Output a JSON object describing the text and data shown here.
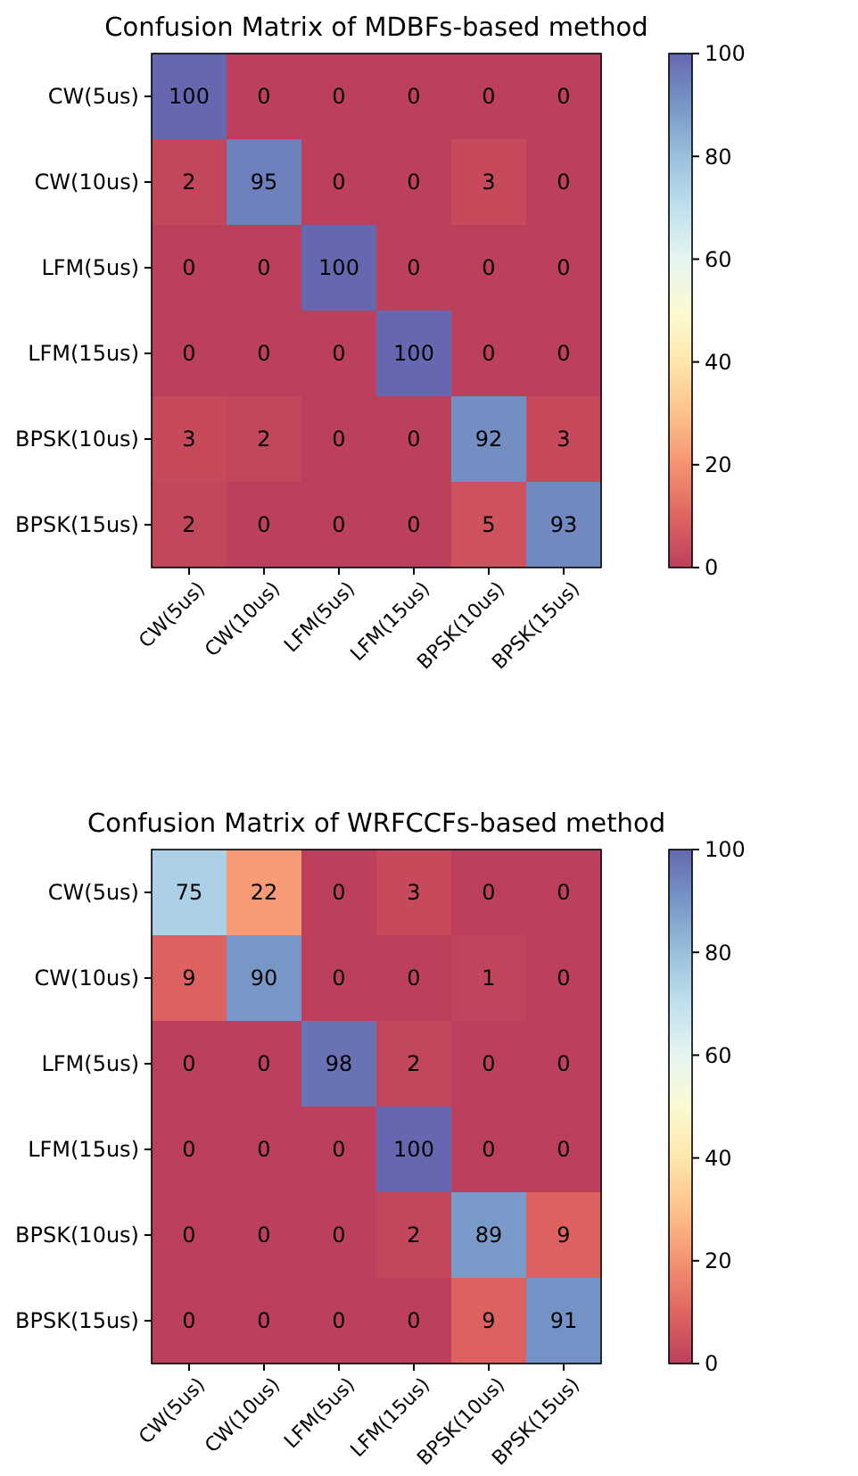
{
  "chart_data": [
    {
      "type": "heatmap",
      "title": "Confusion Matrix of MDBFs-based method",
      "categories": [
        "CW(5us)",
        "CW(10us)",
        "LFM(5us)",
        "LFM(15us)",
        "BPSK(10us)",
        "BPSK(15us)"
      ],
      "y_categories": [
        "CW(5us)",
        "CW(10us)",
        "LFM(5us)",
        "LFM(15us)",
        "BPSK(10us)",
        "BPSK(15us)"
      ],
      "cells": [
        [
          100,
          0,
          0,
          0,
          0,
          0
        ],
        [
          2,
          95,
          0,
          0,
          3,
          0
        ],
        [
          0,
          0,
          100,
          0,
          0,
          0
        ],
        [
          0,
          0,
          0,
          100,
          0,
          0
        ],
        [
          3,
          2,
          0,
          0,
          92,
          3
        ],
        [
          2,
          0,
          0,
          0,
          5,
          93
        ]
      ],
      "data_labels": true,
      "clim": [
        0,
        100
      ],
      "cticks": [
        0,
        20,
        40,
        60,
        80,
        100
      ]
    },
    {
      "type": "heatmap",
      "title": "Confusion Matrix of WRFCCFs-based method",
      "categories": [
        "CW(5us)",
        "CW(10us)",
        "LFM(5us)",
        "LFM(15us)",
        "BPSK(10us)",
        "BPSK(15us)"
      ],
      "y_categories": [
        "CW(5us)",
        "CW(10us)",
        "LFM(5us)",
        "LFM(15us)",
        "BPSK(10us)",
        "BPSK(15us)"
      ],
      "cells": [
        [
          75,
          22,
          0,
          3,
          0,
          0
        ],
        [
          9,
          90,
          0,
          0,
          1,
          0
        ],
        [
          0,
          0,
          98,
          2,
          0,
          0
        ],
        [
          0,
          0,
          0,
          100,
          0,
          0
        ],
        [
          0,
          0,
          0,
          2,
          89,
          9
        ],
        [
          0,
          0,
          0,
          0,
          9,
          91
        ]
      ],
      "data_labels": true,
      "clim": [
        0,
        100
      ],
      "cticks": [
        0,
        20,
        40,
        60,
        80,
        100
      ]
    }
  ]
}
